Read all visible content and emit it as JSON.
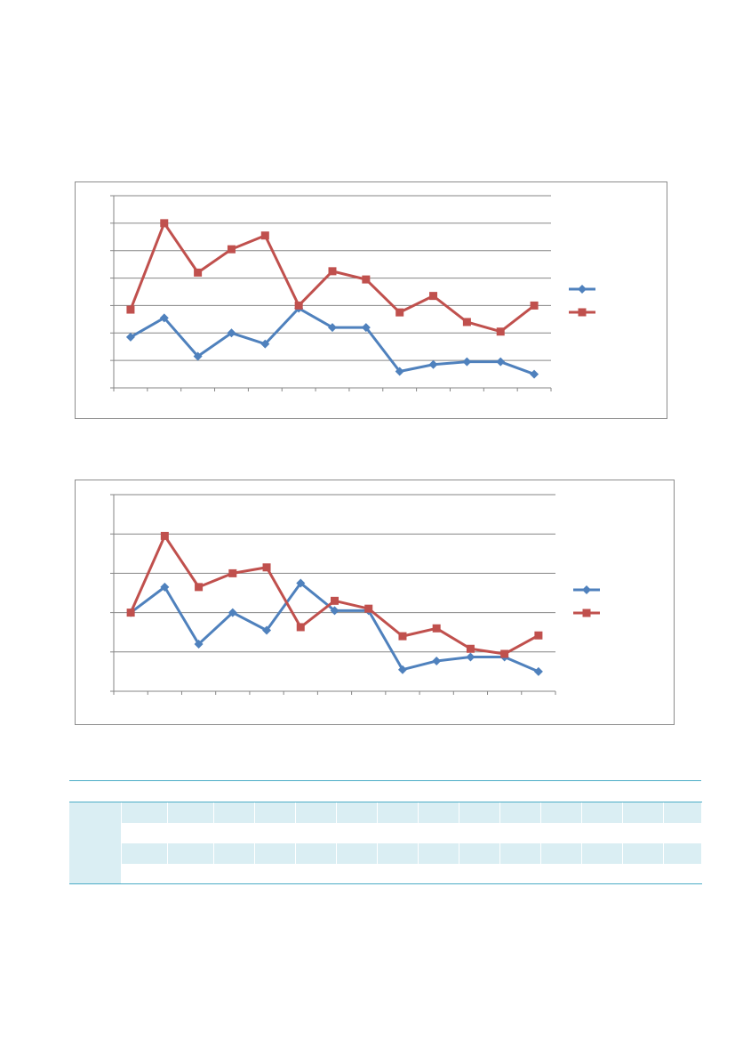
{
  "chart_data": [
    {
      "type": "line",
      "title": "",
      "xlabel": "",
      "ylabel": "",
      "ylim": [
        0,
        7
      ],
      "ytick_count": 7,
      "x_count": 13,
      "grid": true,
      "legend": "right",
      "series": [
        {
          "name": "",
          "color": "#4f81bd",
          "marker": "diamond",
          "values": [
            1.85,
            2.55,
            1.15,
            2.0,
            1.6,
            2.9,
            2.2,
            2.2,
            0.6,
            0.85,
            0.95,
            0.95,
            0.5
          ]
        },
        {
          "name": "",
          "color": "#c0504d",
          "marker": "square",
          "values": [
            2.85,
            6.0,
            4.2,
            5.05,
            5.55,
            3.0,
            4.25,
            3.95,
            2.75,
            3.35,
            2.4,
            2.05,
            3.0
          ]
        }
      ]
    },
    {
      "type": "line",
      "title": "",
      "xlabel": "",
      "ylabel": "",
      "ylim": [
        0,
        5
      ],
      "ytick_count": 5,
      "x_count": 13,
      "grid": true,
      "legend": "right",
      "series": [
        {
          "name": "",
          "color": "#4f81bd",
          "marker": "diamond",
          "values": [
            2.0,
            2.65,
            1.2,
            2.0,
            1.55,
            2.75,
            2.05,
            2.05,
            0.55,
            0.77,
            0.87,
            0.87,
            0.5
          ]
        },
        {
          "name": "",
          "color": "#c0504d",
          "marker": "square",
          "values": [
            2.0,
            3.95,
            2.65,
            3.0,
            3.15,
            1.63,
            2.3,
            2.1,
            1.4,
            1.6,
            1.08,
            0.95,
            1.42
          ]
        }
      ]
    }
  ],
  "table": {
    "header": [
      "",
      "",
      "",
      "",
      "",
      "",
      "",
      "",
      "",
      "",
      "",
      "",
      "",
      "",
      ""
    ],
    "rows": [
      [
        "",
        "",
        "",
        "",
        "",
        "",
        "",
        "",
        "",
        "",
        "",
        "",
        "",
        "",
        ""
      ],
      [
        "",
        "",
        "",
        "",
        "",
        "",
        "",
        "",
        "",
        "",
        "",
        "",
        "",
        "",
        ""
      ],
      [
        "",
        "",
        "",
        "",
        "",
        "",
        "",
        "",
        "",
        "",
        "",
        "",
        "",
        "",
        ""
      ],
      [
        "",
        "",
        "",
        "",
        "",
        "",
        "",
        "",
        "",
        "",
        "",
        "",
        "",
        "",
        ""
      ]
    ]
  }
}
